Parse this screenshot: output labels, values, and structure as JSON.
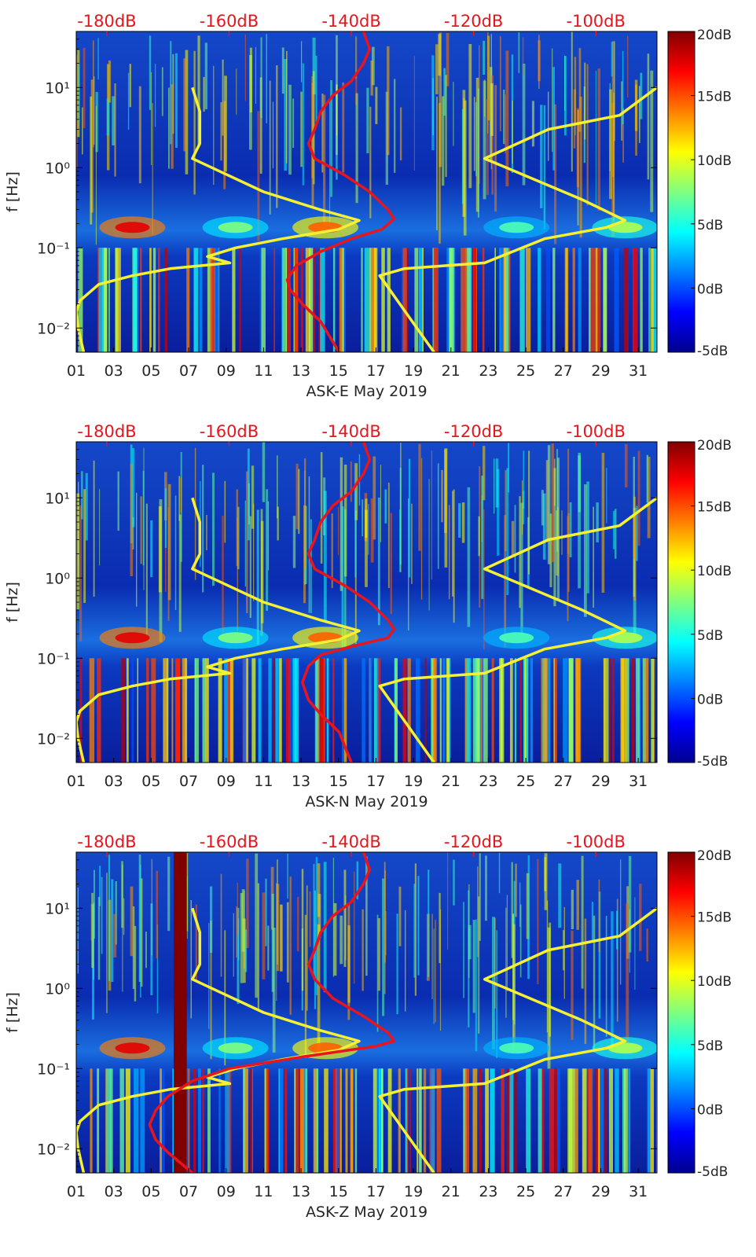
{
  "figure": {
    "month_label": "May 2019"
  },
  "colorbar": {
    "ticks": [
      "20dB",
      "15dB",
      "10dB",
      "5dB",
      "0dB",
      "-5dB"
    ],
    "range_db": [
      -5,
      20
    ],
    "colormap": "jet"
  },
  "chart_data": [
    {
      "type": "heatmap",
      "station": "ASK-E",
      "xlabel": "ASK-E May 2019",
      "ylabel": "f [Hz]",
      "x_ticks": [
        "01",
        "03",
        "05",
        "07",
        "09",
        "11",
        "13",
        "15",
        "17",
        "19",
        "21",
        "23",
        "25",
        "27",
        "29",
        "31"
      ],
      "x_range_days": [
        1,
        32
      ],
      "y_scale": "log",
      "y_ticks": [
        "10¹",
        "10⁰",
        "10⁻¹",
        "10⁻²"
      ],
      "y_range_hz": [
        0.005,
        50
      ],
      "top_axis_ticks": [
        "-180dB",
        "-160dB",
        "-140dB",
        "-120dB",
        "-100dB"
      ],
      "top_axis_range_db": [
        -185,
        -90
      ],
      "red_curve_db_vs_hz": [
        [
          -142,
          0.005
        ],
        [
          -145,
          0.012
        ],
        [
          -148,
          0.02
        ],
        [
          -150,
          0.03
        ],
        [
          -150.5,
          0.04
        ],
        [
          -149,
          0.06
        ],
        [
          -145,
          0.09
        ],
        [
          -140,
          0.13
        ],
        [
          -135,
          0.17
        ],
        [
          -133,
          0.23
        ],
        [
          -134,
          0.3
        ],
        [
          -137,
          0.5
        ],
        [
          -141,
          0.8
        ],
        [
          -146,
          1.3
        ],
        [
          -147,
          2
        ],
        [
          -146,
          3
        ],
        [
          -145,
          5
        ],
        [
          -143,
          8
        ],
        [
          -140,
          12
        ],
        [
          -138,
          20
        ],
        [
          -137,
          30
        ],
        [
          -138,
          50
        ]
      ],
      "yellow_curves": [
        [
          [
            1.4,
            0.005
          ],
          [
            1.1,
            0.01
          ],
          [
            1.0,
            0.016
          ],
          [
            1.2,
            0.022
          ],
          [
            2.2,
            0.035
          ],
          [
            4,
            0.045
          ],
          [
            6,
            0.055
          ],
          [
            9.2,
            0.065
          ],
          [
            8,
            0.078
          ],
          [
            9.5,
            0.1
          ],
          [
            12,
            0.13
          ],
          [
            15,
            0.17
          ],
          [
            16.1,
            0.22
          ],
          [
            14,
            0.3
          ],
          [
            11,
            0.5
          ],
          [
            7.2,
            1.3
          ],
          [
            7.6,
            2
          ],
          [
            7.6,
            5
          ],
          [
            7.2,
            10
          ]
        ],
        [
          [
            20.1,
            0.005
          ],
          [
            17.2,
            0.045
          ],
          [
            18.5,
            0.055
          ],
          [
            22.8,
            0.065
          ],
          [
            26,
            0.13
          ],
          [
            29.3,
            0.18
          ],
          [
            30.3,
            0.22
          ],
          [
            28,
            0.4
          ],
          [
            22.8,
            1.3
          ],
          [
            26.2,
            3
          ],
          [
            30,
            4.5
          ],
          [
            32,
            10
          ]
        ]
      ]
    },
    {
      "type": "heatmap",
      "station": "ASK-N",
      "xlabel": "ASK-N May 2019",
      "ylabel": "f [Hz]",
      "x_ticks": [
        "01",
        "03",
        "05",
        "07",
        "09",
        "11",
        "13",
        "15",
        "17",
        "19",
        "21",
        "23",
        "25",
        "27",
        "29",
        "31"
      ],
      "x_range_days": [
        1,
        32
      ],
      "y_scale": "log",
      "y_ticks": [
        "10¹",
        "10⁰",
        "10⁻¹",
        "10⁻²"
      ],
      "y_range_hz": [
        0.005,
        50
      ],
      "top_axis_ticks": [
        "-180dB",
        "-160dB",
        "-140dB",
        "-120dB",
        "-100dB"
      ],
      "top_axis_range_db": [
        -185,
        -90
      ],
      "red_curve_db_vs_hz": [
        [
          -140,
          0.005
        ],
        [
          -142,
          0.012
        ],
        [
          -145,
          0.02
        ],
        [
          -147,
          0.03
        ],
        [
          -148,
          0.05
        ],
        [
          -147,
          0.08
        ],
        [
          -145,
          0.11
        ],
        [
          -140,
          0.14
        ],
        [
          -134,
          0.18
        ],
        [
          -133,
          0.23
        ],
        [
          -134,
          0.3
        ],
        [
          -137,
          0.5
        ],
        [
          -141,
          0.8
        ],
        [
          -146,
          1.3
        ],
        [
          -147,
          2
        ],
        [
          -146,
          3
        ],
        [
          -145,
          5
        ],
        [
          -143,
          8
        ],
        [
          -140,
          12
        ],
        [
          -138,
          20
        ],
        [
          -137,
          30
        ],
        [
          -138,
          50
        ]
      ],
      "yellow_curves": [
        [
          [
            1.4,
            0.005
          ],
          [
            1.1,
            0.01
          ],
          [
            1.0,
            0.016
          ],
          [
            1.2,
            0.022
          ],
          [
            2.2,
            0.035
          ],
          [
            4,
            0.045
          ],
          [
            6,
            0.055
          ],
          [
            9.2,
            0.065
          ],
          [
            8,
            0.078
          ],
          [
            9.5,
            0.1
          ],
          [
            12,
            0.13
          ],
          [
            15,
            0.17
          ],
          [
            16.1,
            0.22
          ],
          [
            14,
            0.3
          ],
          [
            11,
            0.5
          ],
          [
            7.2,
            1.3
          ],
          [
            7.6,
            2
          ],
          [
            7.6,
            5
          ],
          [
            7.2,
            10
          ]
        ],
        [
          [
            20.1,
            0.005
          ],
          [
            17.2,
            0.045
          ],
          [
            18.5,
            0.055
          ],
          [
            22.8,
            0.065
          ],
          [
            26,
            0.13
          ],
          [
            29.3,
            0.18
          ],
          [
            30.3,
            0.22
          ],
          [
            28,
            0.4
          ],
          [
            22.8,
            1.3
          ],
          [
            26.2,
            3
          ],
          [
            30,
            4.5
          ],
          [
            32,
            10
          ]
        ]
      ]
    },
    {
      "type": "heatmap",
      "station": "ASK-Z",
      "xlabel": "ASK-Z May 2019",
      "ylabel": "f [Hz]",
      "x_ticks": [
        "01",
        "03",
        "05",
        "07",
        "09",
        "11",
        "13",
        "15",
        "17",
        "19",
        "21",
        "23",
        "25",
        "27",
        "29",
        "31"
      ],
      "x_range_days": [
        1,
        32
      ],
      "y_scale": "log",
      "y_ticks": [
        "10¹",
        "10⁰",
        "10⁻¹",
        "10⁻²"
      ],
      "y_range_hz": [
        0.005,
        50
      ],
      "top_axis_ticks": [
        "-180dB",
        "-160dB",
        "-140dB",
        "-120dB",
        "-100dB"
      ],
      "top_axis_range_db": [
        -185,
        -90
      ],
      "red_curve_db_vs_hz": [
        [
          -166,
          0.005
        ],
        [
          -170,
          0.009
        ],
        [
          -172,
          0.013
        ],
        [
          -173,
          0.02
        ],
        [
          -172,
          0.03
        ],
        [
          -170,
          0.045
        ],
        [
          -166,
          0.07
        ],
        [
          -160,
          0.1
        ],
        [
          -148,
          0.14
        ],
        [
          -136,
          0.19
        ],
        [
          -133,
          0.22
        ],
        [
          -134,
          0.28
        ],
        [
          -138,
          0.45
        ],
        [
          -143,
          0.75
        ],
        [
          -146,
          1.3
        ],
        [
          -147,
          2
        ],
        [
          -146,
          3
        ],
        [
          -145,
          5
        ],
        [
          -143,
          8
        ],
        [
          -140,
          12
        ],
        [
          -138,
          20
        ],
        [
          -137,
          30
        ],
        [
          -138,
          50
        ]
      ],
      "yellow_curves": [
        [
          [
            1.4,
            0.005
          ],
          [
            1.1,
            0.01
          ],
          [
            1.0,
            0.016
          ],
          [
            1.2,
            0.022
          ],
          [
            2.2,
            0.035
          ],
          [
            4,
            0.045
          ],
          [
            6,
            0.055
          ],
          [
            9.2,
            0.065
          ],
          [
            8,
            0.078
          ],
          [
            9.5,
            0.1
          ],
          [
            12,
            0.13
          ],
          [
            15,
            0.17
          ],
          [
            16.1,
            0.22
          ],
          [
            14,
            0.3
          ],
          [
            11,
            0.5
          ],
          [
            7.2,
            1.3
          ],
          [
            7.6,
            2
          ],
          [
            7.6,
            5
          ],
          [
            7.2,
            10
          ]
        ],
        [
          [
            20.1,
            0.005
          ],
          [
            17.2,
            0.045
          ],
          [
            18.5,
            0.055
          ],
          [
            22.8,
            0.065
          ],
          [
            26,
            0.13
          ],
          [
            29.3,
            0.18
          ],
          [
            30.3,
            0.22
          ],
          [
            28,
            0.4
          ],
          [
            22.8,
            1.3
          ],
          [
            26.2,
            3
          ],
          [
            30,
            4.5
          ],
          [
            32,
            10
          ]
        ]
      ],
      "data_gap_days": [
        6.2,
        6.9
      ]
    }
  ]
}
